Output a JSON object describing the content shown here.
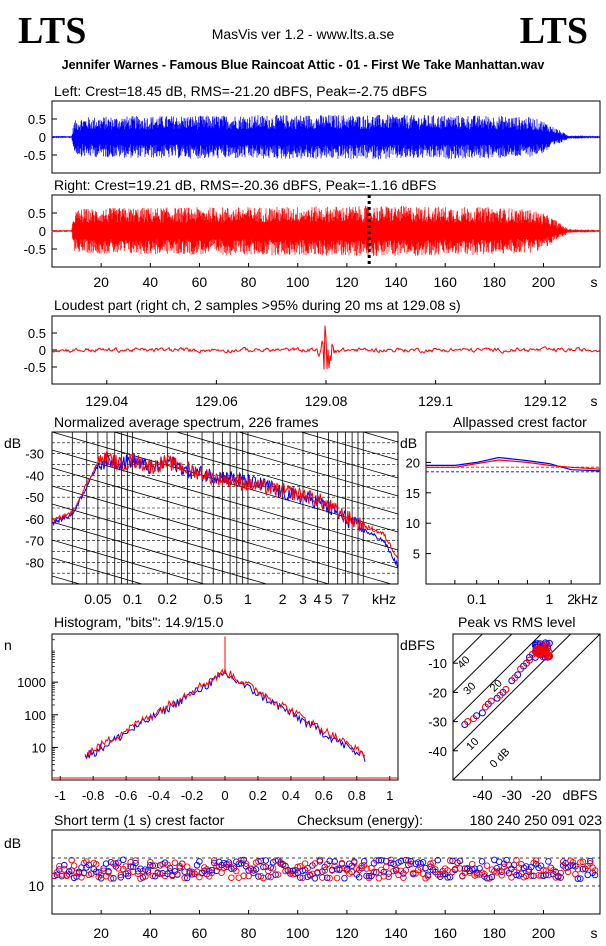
{
  "header": {
    "logo_left": "LTS",
    "logo_right": "LTS",
    "app_title": "MasVis ver 1.2 - www.lts.a.se",
    "file_title": "Jennifer Warnes - Famous Blue Raincoat Attic - 01 - First We Take Manhattan.wav"
  },
  "colors": {
    "left": "#0000ff",
    "right": "#ff0000",
    "grid": "#000000"
  },
  "chart_data": [
    {
      "type": "area",
      "id": "left_waveform",
      "title": "Left: Crest=18.45 dB, RMS=-21.20 dBFS, Peak=-2.75 dBFS",
      "yticks": [
        "0.5",
        "0",
        "-0.5"
      ],
      "ylim": [
        -1,
        1
      ],
      "xlim": [
        0,
        223
      ],
      "envelope": {
        "x": [
          0,
          8,
          9,
          12,
          30,
          60,
          100,
          140,
          180,
          195,
          200,
          205,
          210,
          223
        ],
        "amp": [
          0.03,
          0.03,
          0.45,
          0.55,
          0.58,
          0.6,
          0.62,
          0.62,
          0.6,
          0.55,
          0.45,
          0.25,
          0.05,
          0.03
        ]
      }
    },
    {
      "type": "area",
      "id": "right_waveform",
      "title": "Right: Crest=19.21 dB, RMS=-20.36 dBFS, Peak=-1.16 dBFS",
      "yticks": [
        "0.5",
        "0",
        "-0.5"
      ],
      "ylim": [
        -1,
        1
      ],
      "xlim": [
        0,
        223
      ],
      "marker_x": 129.08,
      "xticks": [
        "20",
        "40",
        "60",
        "80",
        "100",
        "120",
        "140",
        "160",
        "180",
        "200"
      ],
      "xunit": "s",
      "envelope": {
        "x": [
          0,
          8,
          9,
          12,
          30,
          60,
          100,
          140,
          180,
          195,
          200,
          205,
          210,
          223
        ],
        "amp": [
          0.03,
          0.03,
          0.55,
          0.62,
          0.65,
          0.66,
          0.68,
          0.7,
          0.66,
          0.6,
          0.5,
          0.3,
          0.06,
          0.03
        ]
      }
    },
    {
      "type": "line",
      "id": "loudest_part",
      "title": "Loudest part (right ch, 2 samples >95% during 20 ms at 129.08 s)",
      "yticks": [
        "0.5",
        "0",
        "-0.5"
      ],
      "ylim": [
        -1,
        1
      ],
      "xlim": [
        129.03,
        129.13
      ],
      "xticks": [
        "129.04",
        "129.06",
        "129.08",
        "129.1",
        "129.12"
      ],
      "xunit": "s",
      "burst_at": 129.08
    },
    {
      "type": "line",
      "id": "spectrum",
      "title": "Normalized average spectrum, 226 frames",
      "ylabel": "dB",
      "yticks": [
        "-30",
        "-40",
        "-50",
        "-60",
        "-70",
        "-80"
      ],
      "ylim": [
        -90,
        -20
      ],
      "xticks": [
        "0.05",
        "0.1",
        "0.2",
        "0.5",
        "1",
        "2",
        "3",
        "4",
        "5",
        "7"
      ],
      "xunit": "kHz",
      "x_khz": [
        0.02,
        0.03,
        0.04,
        0.05,
        0.06,
        0.08,
        0.1,
        0.15,
        0.2,
        0.3,
        0.5,
        0.7,
        1,
        1.5,
        2,
        3,
        4,
        5,
        7,
        10,
        15,
        20
      ],
      "series": [
        {
          "values": [
            -62,
            -58,
            -45,
            -35,
            -33,
            -34,
            -33,
            -37,
            -33,
            -38,
            -40,
            -41,
            -43,
            -45,
            -48,
            -50,
            -52,
            -55,
            -60,
            -65,
            -70,
            -82
          ]
        },
        {
          "values": [
            -61,
            -57,
            -44,
            -34,
            -32,
            -35,
            -33,
            -36,
            -34,
            -37,
            -41,
            -42,
            -44,
            -46,
            -47,
            -49,
            -51,
            -54,
            -59,
            -63,
            -67,
            -78
          ]
        }
      ]
    },
    {
      "type": "line",
      "id": "allpassed_crest",
      "title": "Allpassed crest factor",
      "ylabel": "dB",
      "yticks": [
        "20",
        "15",
        "10",
        "5"
      ],
      "ylim": [
        0,
        25
      ],
      "xticks": [
        "0.1",
        "1",
        "2"
      ],
      "xunit": "kHz",
      "x_khz": [
        0.02,
        0.05,
        0.1,
        0.2,
        0.5,
        1,
        2,
        5,
        10
      ],
      "series": [
        {
          "values": [
            19.5,
            19.5,
            20.0,
            20.8,
            20.3,
            19.8,
            18.8,
            18.6,
            18.6
          ]
        },
        {
          "values": [
            19.2,
            19.2,
            19.8,
            20.4,
            20.0,
            19.5,
            19.2,
            18.9,
            18.9
          ]
        }
      ]
    },
    {
      "type": "line",
      "id": "histogram",
      "title": "Histogram, \"bits\": 14.9/15.0",
      "ylabel": "n",
      "yticks": [
        "1000",
        "100",
        "10"
      ],
      "ylim": [
        1,
        30000
      ],
      "xticks": [
        "-1",
        "-0.8",
        "-0.6",
        "-0.4",
        "-0.2",
        "0",
        "0.2",
        "0.4",
        "0.6",
        "0.8",
        "1"
      ],
      "xlim": [
        -1.05,
        1.05
      ],
      "peak_count": 2000,
      "decay_per_0_1": 0.5
    },
    {
      "type": "scatter",
      "id": "peak_vs_rms",
      "title": "Peak vs RMS level",
      "ylabel": "dBFS",
      "xlabel": "dBFS",
      "yticks": [
        "-10",
        "-20",
        "-30",
        "-40"
      ],
      "xticks": [
        "-40",
        "-30",
        "-20"
      ],
      "xlim": [
        -50,
        0
      ],
      "ylim": [
        -50,
        0
      ],
      "diagonal_labels": [
        "40",
        "30",
        "20",
        "10",
        "0 dB"
      ],
      "series": [
        {
          "x": [
            -46,
            -42,
            -40,
            -38,
            -35,
            -33,
            -30,
            -28,
            -26,
            -25,
            -24,
            -23,
            -22,
            -21,
            -20
          ],
          "y": [
            -31,
            -28,
            -27,
            -24,
            -22,
            -20,
            -16,
            -14,
            -11,
            -10,
            -8,
            -7,
            -8,
            -6,
            -5
          ]
        },
        {
          "x": [
            -45,
            -43,
            -39,
            -37,
            -34,
            -32,
            -29,
            -27,
            -25,
            -24,
            -23,
            -22,
            -21,
            -20,
            -19
          ],
          "y": [
            -30,
            -29,
            -25,
            -23,
            -21,
            -19,
            -15,
            -12,
            -10,
            -9,
            -7,
            -6,
            -5,
            -4,
            -6
          ]
        }
      ]
    },
    {
      "type": "scatter",
      "id": "short_term_crest",
      "title": "Short term (1 s) crest factor",
      "checksum_label": "Checksum (energy):",
      "checksum_value": "180 240 250 091 023",
      "ylabel": "dB",
      "yticks": [
        "10"
      ],
      "ylim": [
        5,
        20
      ],
      "xlim": [
        0,
        223
      ],
      "xticks": [
        "20",
        "40",
        "60",
        "80",
        "100",
        "120",
        "140",
        "160",
        "180",
        "200"
      ],
      "xunit": "s",
      "typical_db": 13
    }
  ]
}
